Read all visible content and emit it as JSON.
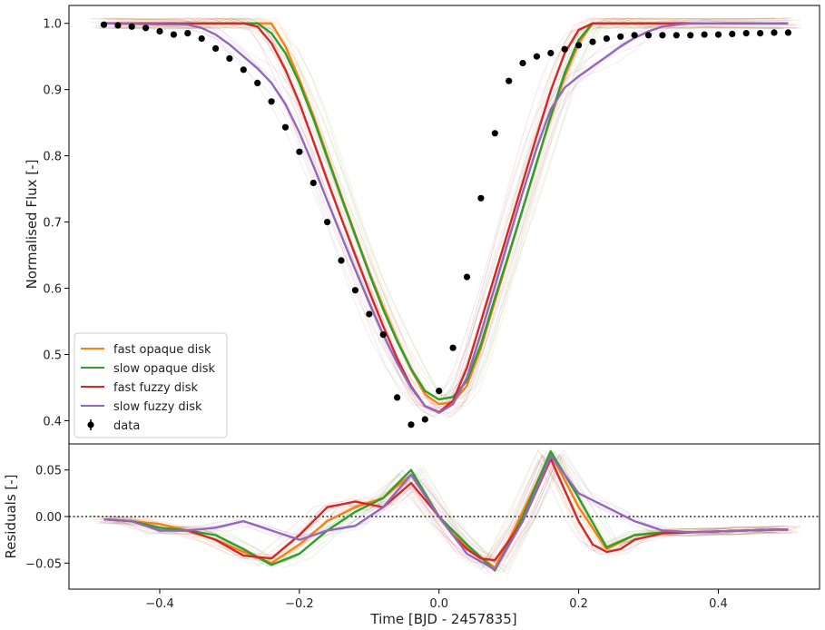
{
  "chart_data": [
    {
      "type": "line",
      "panel": "main",
      "xlim": [
        -0.53,
        0.545
      ],
      "ylim": [
        0.365,
        1.027
      ],
      "ylabel": "Normalised Flux [-]",
      "yticks": [
        0.4,
        0.5,
        0.6,
        0.7,
        0.8,
        0.9,
        1.0
      ],
      "ytick_labels": [
        "0.4",
        "0.5",
        "0.6",
        "0.7",
        "0.8",
        "0.9",
        "1.0"
      ],
      "legend_position": "lower-left",
      "legend": [
        {
          "label": "fast opaque disk",
          "color": "#ff7f0e",
          "kind": "line"
        },
        {
          "label": "slow opaque disk",
          "color": "#2ca02c",
          "kind": "line"
        },
        {
          "label": "fast fuzzy disk",
          "color": "#d62728",
          "kind": "line"
        },
        {
          "label": "slow fuzzy disk",
          "color": "#9467bd",
          "kind": "line"
        },
        {
          "label": "data",
          "color": "#000000",
          "kind": "errorbar-point"
        }
      ],
      "series": [
        {
          "name": "data",
          "color": "#000000",
          "style": "points",
          "x": [
            -0.48,
            -0.46,
            -0.44,
            -0.42,
            -0.4,
            -0.38,
            -0.36,
            -0.34,
            -0.32,
            -0.3,
            -0.28,
            -0.26,
            -0.24,
            -0.22,
            -0.2,
            -0.18,
            -0.16,
            -0.14,
            -0.12,
            -0.1,
            -0.08,
            -0.06,
            -0.04,
            -0.02,
            0.0,
            0.02,
            0.04,
            0.06,
            0.08,
            0.1,
            0.12,
            0.14,
            0.16,
            0.18,
            0.2,
            0.22,
            0.24,
            0.26,
            0.28,
            0.3,
            0.32,
            0.34,
            0.36,
            0.38,
            0.4,
            0.42,
            0.44,
            0.46,
            0.48,
            0.5
          ],
          "y": [
            0.998,
            0.997,
            0.995,
            0.993,
            0.988,
            0.983,
            0.985,
            0.977,
            0.962,
            0.947,
            0.93,
            0.91,
            0.882,
            0.843,
            0.806,
            0.759,
            0.7,
            0.642,
            0.597,
            0.561,
            0.53,
            0.435,
            0.394,
            0.402,
            0.445,
            0.51,
            0.617,
            0.736,
            0.834,
            0.913,
            0.94,
            0.95,
            0.955,
            0.961,
            0.967,
            0.972,
            0.977,
            0.98,
            0.982,
            0.982,
            0.982,
            0.982,
            0.982,
            0.983,
            0.983,
            0.984,
            0.985,
            0.985,
            0.986,
            0.986
          ]
        },
        {
          "name": "fast opaque disk",
          "color": "#ff7f0e",
          "x": [
            -0.48,
            -0.36,
            -0.34,
            -0.32,
            -0.3,
            -0.28,
            -0.26,
            -0.24,
            -0.22,
            -0.2,
            -0.18,
            -0.16,
            -0.14,
            -0.12,
            -0.1,
            -0.08,
            -0.06,
            -0.04,
            -0.02,
            0.0,
            0.02,
            0.04,
            0.06,
            0.08,
            0.1,
            0.12,
            0.14,
            0.16,
            0.18,
            0.2,
            0.22,
            0.24,
            0.26,
            0.28,
            0.3,
            0.5
          ],
          "y": [
            1.0,
            1.0,
            1.0,
            1.0,
            1.0,
            1.0,
            1.0,
            1.0,
            0.965,
            0.915,
            0.86,
            0.8,
            0.74,
            0.682,
            0.625,
            0.572,
            0.522,
            0.477,
            0.44,
            0.425,
            0.428,
            0.453,
            0.51,
            0.58,
            0.65,
            0.72,
            0.79,
            0.858,
            0.92,
            0.97,
            1.0,
            1.0,
            1.0,
            1.0,
            1.0,
            1.0
          ]
        },
        {
          "name": "slow opaque disk",
          "color": "#2ca02c",
          "x": [
            -0.48,
            -0.36,
            -0.34,
            -0.32,
            -0.3,
            -0.28,
            -0.26,
            -0.24,
            -0.22,
            -0.2,
            -0.18,
            -0.16,
            -0.14,
            -0.12,
            -0.1,
            -0.08,
            -0.06,
            -0.04,
            -0.02,
            0.0,
            0.02,
            0.04,
            0.06,
            0.08,
            0.1,
            0.12,
            0.14,
            0.16,
            0.18,
            0.2,
            0.22,
            0.24,
            0.26,
            0.28,
            0.3,
            0.5
          ],
          "y": [
            1.0,
            1.0,
            1.0,
            1.0,
            1.0,
            1.0,
            1.0,
            0.985,
            0.955,
            0.91,
            0.856,
            0.797,
            0.738,
            0.68,
            0.622,
            0.568,
            0.52,
            0.478,
            0.445,
            0.432,
            0.436,
            0.46,
            0.515,
            0.585,
            0.652,
            0.72,
            0.79,
            0.86,
            0.925,
            0.975,
            1.0,
            1.0,
            1.0,
            1.0,
            1.0,
            1.0
          ]
        },
        {
          "name": "fast fuzzy disk",
          "color": "#d62728",
          "x": [
            -0.48,
            -0.36,
            -0.34,
            -0.32,
            -0.3,
            -0.28,
            -0.26,
            -0.24,
            -0.22,
            -0.2,
            -0.18,
            -0.16,
            -0.14,
            -0.12,
            -0.1,
            -0.08,
            -0.06,
            -0.04,
            -0.02,
            0.0,
            0.02,
            0.04,
            0.06,
            0.08,
            0.1,
            0.12,
            0.14,
            0.16,
            0.18,
            0.2,
            0.22,
            0.24,
            0.26,
            0.28,
            0.3,
            0.5
          ],
          "y": [
            1.0,
            1.0,
            1.0,
            1.0,
            1.0,
            1.0,
            0.995,
            0.97,
            0.93,
            0.88,
            0.822,
            0.763,
            0.706,
            0.65,
            0.595,
            0.543,
            0.494,
            0.452,
            0.422,
            0.413,
            0.43,
            0.48,
            0.55,
            0.62,
            0.69,
            0.76,
            0.83,
            0.898,
            0.955,
            0.99,
            1.0,
            1.0,
            1.0,
            1.0,
            1.0,
            1.0
          ]
        },
        {
          "name": "slow fuzzy disk",
          "color": "#9467bd",
          "x": [
            -0.48,
            -0.36,
            -0.34,
            -0.32,
            -0.3,
            -0.28,
            -0.26,
            -0.24,
            -0.22,
            -0.2,
            -0.18,
            -0.16,
            -0.14,
            -0.12,
            -0.1,
            -0.08,
            -0.06,
            -0.04,
            -0.02,
            0.0,
            0.02,
            0.04,
            0.06,
            0.08,
            0.1,
            0.12,
            0.14,
            0.16,
            0.18,
            0.2,
            0.22,
            0.24,
            0.26,
            0.28,
            0.3,
            0.32,
            0.34,
            0.36,
            0.38,
            0.5
          ],
          "y": [
            1.0,
            0.998,
            0.993,
            0.983,
            0.968,
            0.95,
            0.932,
            0.91,
            0.878,
            0.835,
            0.785,
            0.732,
            0.68,
            0.628,
            0.578,
            0.53,
            0.487,
            0.45,
            0.422,
            0.412,
            0.425,
            0.465,
            0.532,
            0.603,
            0.675,
            0.745,
            0.812,
            0.87,
            0.903,
            0.92,
            0.935,
            0.95,
            0.965,
            0.978,
            0.988,
            0.995,
            0.998,
            1.0,
            1.0,
            1.0
          ]
        }
      ]
    },
    {
      "type": "line",
      "panel": "residuals",
      "xlim": [
        -0.53,
        0.545
      ],
      "ylim": [
        -0.078,
        0.078
      ],
      "xlabel": "Time [BJD - 2457835]",
      "ylabel": "Residuals [-]",
      "xticks": [
        -0.4,
        -0.2,
        0.0,
        0.2,
        0.4
      ],
      "xtick_labels": [
        "−0.4",
        "−0.2",
        "0.0",
        "0.2",
        "0.4"
      ],
      "yticks": [
        -0.05,
        0.0,
        0.05
      ],
      "ytick_labels": [
        "−0.05",
        "0.00",
        "0.05"
      ],
      "zero_line": true,
      "series": [
        {
          "name": "fast opaque disk",
          "color": "#ff7f0e",
          "x": [
            -0.48,
            -0.44,
            -0.4,
            -0.36,
            -0.32,
            -0.28,
            -0.24,
            -0.2,
            -0.16,
            -0.12,
            -0.08,
            -0.04,
            0.0,
            0.04,
            0.08,
            0.12,
            0.16,
            0.2,
            0.24,
            0.28,
            0.32,
            0.36,
            0.4,
            0.44,
            0.48,
            0.5
          ],
          "y": [
            -0.003,
            -0.005,
            -0.008,
            -0.015,
            -0.025,
            -0.038,
            -0.05,
            -0.03,
            -0.005,
            0.01,
            0.02,
            0.045,
            0.0,
            -0.032,
            -0.055,
            0.005,
            0.068,
            0.01,
            -0.035,
            -0.02,
            -0.017,
            -0.017,
            -0.016,
            -0.015,
            -0.014,
            -0.014
          ]
        },
        {
          "name": "slow opaque disk",
          "color": "#2ca02c",
          "x": [
            -0.48,
            -0.44,
            -0.4,
            -0.36,
            -0.32,
            -0.28,
            -0.24,
            -0.2,
            -0.16,
            -0.12,
            -0.08,
            -0.04,
            0.0,
            0.04,
            0.08,
            0.12,
            0.16,
            0.2,
            0.24,
            0.28,
            0.32,
            0.36,
            0.4,
            0.44,
            0.48,
            0.5
          ],
          "y": [
            -0.003,
            -0.005,
            -0.012,
            -0.015,
            -0.02,
            -0.035,
            -0.052,
            -0.04,
            -0.015,
            0.005,
            0.02,
            0.05,
            0.0,
            -0.03,
            -0.058,
            0.0,
            0.07,
            0.02,
            -0.033,
            -0.02,
            -0.017,
            -0.017,
            -0.016,
            -0.015,
            -0.014,
            -0.014
          ]
        },
        {
          "name": "fast fuzzy disk",
          "color": "#d62728",
          "x": [
            -0.48,
            -0.44,
            -0.4,
            -0.36,
            -0.32,
            -0.28,
            -0.24,
            -0.2,
            -0.16,
            -0.12,
            -0.08,
            -0.04,
            0.0,
            0.02,
            0.04,
            0.06,
            0.08,
            0.12,
            0.16,
            0.2,
            0.22,
            0.24,
            0.26,
            0.28,
            0.32,
            0.36,
            0.4,
            0.44,
            0.48,
            0.5
          ],
          "y": [
            -0.003,
            -0.005,
            -0.015,
            -0.015,
            -0.025,
            -0.042,
            -0.045,
            -0.02,
            0.01,
            0.016,
            0.01,
            0.036,
            0.0,
            -0.02,
            -0.035,
            -0.045,
            -0.047,
            -0.005,
            0.062,
            -0.005,
            -0.03,
            -0.038,
            -0.035,
            -0.025,
            -0.018,
            -0.017,
            -0.016,
            -0.015,
            -0.014,
            -0.014
          ]
        },
        {
          "name": "slow fuzzy disk",
          "color": "#9467bd",
          "x": [
            -0.48,
            -0.44,
            -0.4,
            -0.36,
            -0.32,
            -0.28,
            -0.24,
            -0.2,
            -0.16,
            -0.12,
            -0.08,
            -0.04,
            0.0,
            0.04,
            0.08,
            0.12,
            0.16,
            0.2,
            0.24,
            0.28,
            0.32,
            0.36,
            0.4,
            0.44,
            0.48,
            0.5
          ],
          "y": [
            -0.003,
            -0.005,
            -0.015,
            -0.015,
            -0.012,
            -0.005,
            -0.015,
            -0.025,
            -0.015,
            -0.01,
            0.01,
            0.045,
            0.0,
            -0.04,
            -0.057,
            -0.005,
            0.065,
            0.025,
            0.01,
            -0.005,
            -0.015,
            -0.017,
            -0.016,
            -0.015,
            -0.014,
            -0.014
          ]
        }
      ]
    }
  ]
}
